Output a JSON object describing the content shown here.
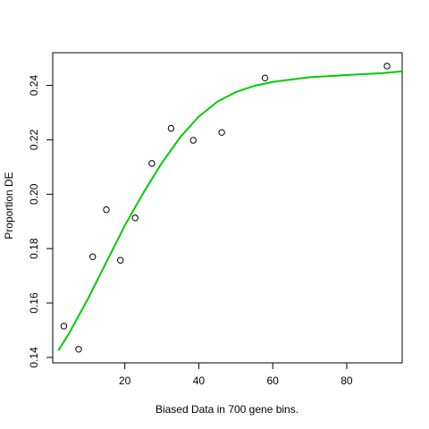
{
  "chart_data": {
    "type": "scatter",
    "xlabel": "Biased Data in 700 gene bins.",
    "ylabel": "Proportion DE",
    "xlim": [
      0.5,
      95
    ],
    "ylim": [
      0.138,
      0.252
    ],
    "x_ticks": [
      20,
      40,
      60,
      80
    ],
    "y_ticks": [
      0.14,
      0.16,
      0.18,
      0.2,
      0.22,
      0.24
    ],
    "x_tick_labels": [
      "20",
      "40",
      "60",
      "80"
    ],
    "y_tick_labels": [
      "0.14",
      "0.16",
      "0.18",
      "0.20",
      "0.22",
      "0.24"
    ],
    "grid": false,
    "points": [
      {
        "x": 3.5,
        "y": 0.1515
      },
      {
        "x": 7.5,
        "y": 0.143
      },
      {
        "x": 11.3,
        "y": 0.177
      },
      {
        "x": 15.0,
        "y": 0.1943
      },
      {
        "x": 18.8,
        "y": 0.1757
      },
      {
        "x": 22.8,
        "y": 0.1913
      },
      {
        "x": 27.3,
        "y": 0.2113
      },
      {
        "x": 32.5,
        "y": 0.2242
      },
      {
        "x": 38.5,
        "y": 0.2198
      },
      {
        "x": 46.2,
        "y": 0.2227
      },
      {
        "x": 57.9,
        "y": 0.2427
      },
      {
        "x": 90.9,
        "y": 0.2471
      }
    ],
    "fit_curve": {
      "color": "#00cc00",
      "points": [
        {
          "x": 2.0,
          "y": 0.1425
        },
        {
          "x": 5.0,
          "y": 0.149
        },
        {
          "x": 10.0,
          "y": 0.1615
        },
        {
          "x": 15.0,
          "y": 0.175
        },
        {
          "x": 20.0,
          "y": 0.1885
        },
        {
          "x": 25.0,
          "y": 0.2005
        },
        {
          "x": 30.0,
          "y": 0.2115
        },
        {
          "x": 35.0,
          "y": 0.221
        },
        {
          "x": 40.0,
          "y": 0.2285
        },
        {
          "x": 45.0,
          "y": 0.234
        },
        {
          "x": 50.0,
          "y": 0.2375
        },
        {
          "x": 55.0,
          "y": 0.2398
        },
        {
          "x": 60.0,
          "y": 0.2413
        },
        {
          "x": 70.0,
          "y": 0.243
        },
        {
          "x": 80.0,
          "y": 0.2438
        },
        {
          "x": 90.0,
          "y": 0.2445
        },
        {
          "x": 95.0,
          "y": 0.2452
        }
      ]
    },
    "point_color": "#000000"
  }
}
